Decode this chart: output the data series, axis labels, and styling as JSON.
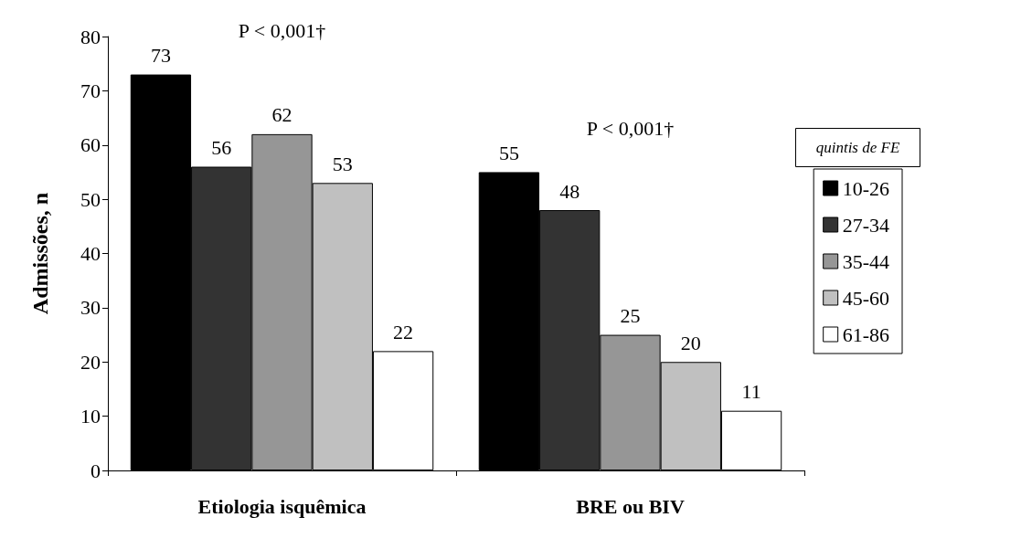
{
  "chart_data": {
    "type": "bar",
    "ylabel": "Admissões, n",
    "legend_title": "quintis de FE",
    "categories": [
      "Etiologia isquêmica",
      "BRE ou BIV"
    ],
    "series": [
      {
        "name": "10-26",
        "color": "#000000",
        "values": [
          73,
          55
        ]
      },
      {
        "name": "27-34",
        "color": "#333333",
        "values": [
          56,
          48
        ]
      },
      {
        "name": "35-44",
        "color": "#969696",
        "values": [
          62,
          25
        ]
      },
      {
        "name": "45-60",
        "color": "#c0c0c0",
        "values": [
          53,
          20
        ]
      },
      {
        "name": "61-86",
        "color": "#ffffff",
        "values": [
          22,
          11
        ]
      }
    ],
    "ylim": [
      0,
      80
    ],
    "yticks": [
      0,
      10,
      20,
      30,
      40,
      50,
      60,
      70,
      80
    ],
    "grid": false,
    "legend": "right",
    "data_labels": true,
    "annotations": [
      "P < 0,001†",
      "P < 0,001†"
    ]
  }
}
